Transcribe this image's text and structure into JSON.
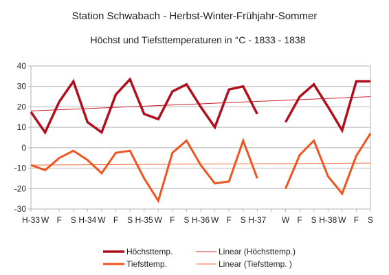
{
  "chart_data": {
    "type": "line",
    "title": "Station Schwabach - Herbst-Winter-Frühjahr-Sommer",
    "subtitle": "Höchst und Tiefsttemperaturen in °C - 1833 - 1838",
    "xlabel": "",
    "ylabel": "",
    "ylim": [
      -30,
      40
    ],
    "yticks": [
      -30,
      -20,
      -10,
      0,
      10,
      20,
      30,
      40
    ],
    "grid": true,
    "legend_position": "bottom",
    "categories": [
      "H-33",
      "W",
      "F",
      "S",
      "H-34",
      "W",
      "F",
      "S",
      "H-35",
      "W",
      "F",
      "S",
      "H-36",
      "W",
      "F",
      "S",
      "H-37",
      "",
      "W",
      "F",
      "S",
      "H-38",
      "W",
      "F",
      "S"
    ],
    "series": [
      {
        "name": "Höchsttemp.",
        "color": "#b0101e",
        "values": [
          17.5,
          7.5,
          22.5,
          32.5,
          12.5,
          7.5,
          26,
          33.5,
          16.5,
          14,
          27.5,
          31,
          20,
          10,
          28.5,
          30,
          16.5,
          null,
          12.5,
          25,
          31,
          20,
          8.5,
          32.5,
          32.5
        ]
      },
      {
        "name": "Tiefsttemp.",
        "color": "#f0541e",
        "values": [
          -8.5,
          -11,
          -5,
          -1.5,
          -6,
          -12.5,
          -2.5,
          -1.5,
          -15,
          -26,
          -2.5,
          3.5,
          -8.5,
          -17.5,
          -16.5,
          3.5,
          -15,
          null,
          -20,
          -3.5,
          3.5,
          -14,
          -22.5,
          -4,
          7
        ]
      }
    ],
    "trendlines": [
      {
        "name": "Linear (Höchsttemp.)",
        "color": "#c8202c",
        "start": 18,
        "end": 25
      },
      {
        "name": "Linear (Tiefsttemp. )",
        "color": "#f26a3c",
        "start": -8.5,
        "end": -7.5
      }
    ]
  }
}
